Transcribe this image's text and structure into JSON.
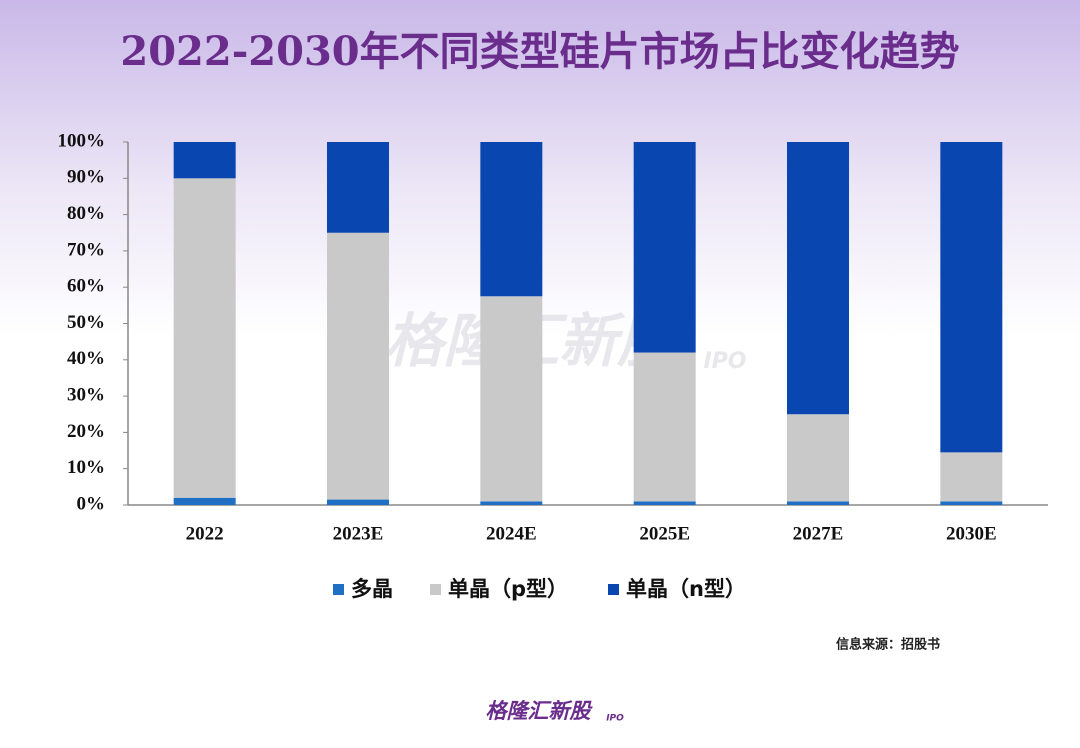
{
  "chart_data": {
    "type": "stacked_bar",
    "title": "2022-2030年不同类型硅片市场占比变化趋势",
    "categories": [
      "2022",
      "2023E",
      "2024E",
      "2025E",
      "2027E",
      "2030E"
    ],
    "series": [
      {
        "name": "多晶",
        "color": "#1f6fc4",
        "values": [
          2,
          1.5,
          1,
          1,
          1,
          1
        ]
      },
      {
        "name": "单晶（p型）",
        "color": "#c9c9c9",
        "values": [
          88,
          73.5,
          56.5,
          41,
          24,
          13.5
        ]
      },
      {
        "name": "单晶（n型）",
        "color": "#0a46b0",
        "values": [
          10,
          25,
          42.5,
          58,
          75,
          85.5
        ]
      }
    ],
    "ylim": [
      0,
      100
    ],
    "yticks": [
      {
        "value": 0,
        "label": "0%"
      },
      {
        "value": 10,
        "label": "10%"
      },
      {
        "value": 20,
        "label": "20%"
      },
      {
        "value": 30,
        "label": "30%"
      },
      {
        "value": 40,
        "label": "40%"
      },
      {
        "value": 50,
        "label": "50%"
      },
      {
        "value": 60,
        "label": "60%"
      },
      {
        "value": 70,
        "label": "70%"
      },
      {
        "value": 80,
        "label": "80%"
      },
      {
        "value": 90,
        "label": "90%"
      },
      {
        "value": 100,
        "label": "100%"
      }
    ],
    "legend": "bottom",
    "source": "信息来源：招股书",
    "logo": {
      "name": "格隆汇新股",
      "tag": "IPO"
    }
  }
}
